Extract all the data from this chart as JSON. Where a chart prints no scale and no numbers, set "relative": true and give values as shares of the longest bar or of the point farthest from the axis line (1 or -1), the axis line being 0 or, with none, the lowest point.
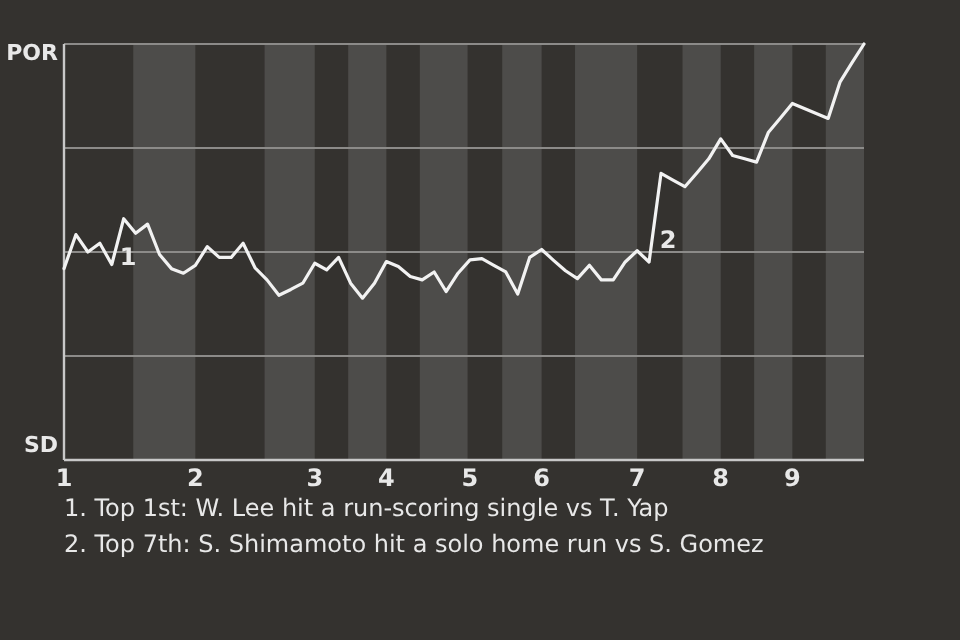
{
  "chart_data": {
    "type": "line",
    "relative": true,
    "categories": [
      "1",
      null,
      null,
      null,
      null,
      null,
      null,
      null,
      null,
      null,
      null,
      "2",
      null,
      null,
      null,
      null,
      null,
      null,
      null,
      null,
      null,
      "3",
      null,
      null,
      null,
      null,
      null,
      "4",
      null,
      null,
      null,
      null,
      null,
      null,
      "5",
      null,
      null,
      null,
      null,
      null,
      "6",
      null,
      null,
      null,
      null,
      null,
      null,
      null,
      "7",
      null,
      null,
      null,
      null,
      null,
      null,
      "8",
      null,
      null,
      null,
      null,
      null,
      "9",
      null,
      null,
      null,
      null,
      null,
      null
    ],
    "series": [
      {
        "color": "#f2f2f2",
        "values": [
          0.46,
          0.542,
          0.5,
          0.521,
          0.47,
          0.58,
          0.545,
          0.567,
          0.494,
          0.46,
          0.449,
          0.468,
          0.513,
          0.487,
          0.487,
          0.521,
          0.462,
          0.433,
          0.396,
          0.41,
          0.425,
          0.473,
          0.457,
          0.487,
          0.425,
          0.389,
          0.425,
          0.477,
          0.465,
          0.441,
          0.433,
          0.452,
          0.405,
          0.449,
          0.481,
          0.484,
          0.468,
          0.452,
          0.399,
          0.487,
          0.506,
          0.48,
          0.455,
          0.436,
          0.468,
          0.433,
          0.433,
          0.476,
          0.503,
          0.476,
          0.689,
          0.673,
          0.657,
          0.69,
          0.724,
          0.772,
          0.732,
          0.724,
          0.716,
          0.788,
          0.822,
          0.857,
          0.845,
          0.833,
          0.821,
          0.909,
          0.955,
          1
        ]
      }
    ],
    "grid": "y",
    "marker": "none",
    "annotations": [
      "POR",
      "SD",
      "1",
      "2",
      "1. Top 1st: W. Lee hit a run-scoring single vs T. Yap",
      "2. Top 7th: S. Shimamoto hit a solo home run vs S. Gomez"
    ]
  }
}
